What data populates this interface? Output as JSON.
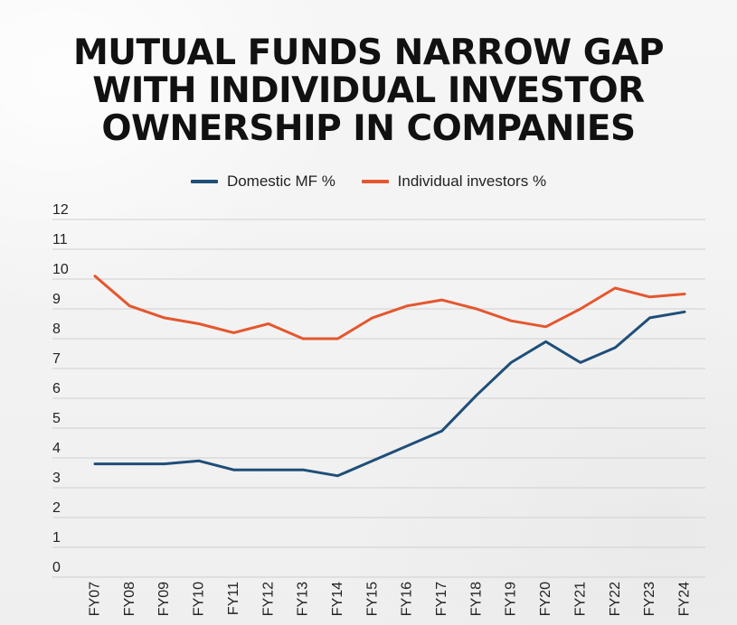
{
  "chart_data": {
    "type": "line",
    "title": "MUTUAL FUNDS NARROW GAP WITH INDIVIDUAL INVESTOR OWNERSHIP IN COMPANIES",
    "title_lines": [
      "MUTUAL FUNDS NARROW GAP",
      "WITH INDIVIDUAL INVESTOR",
      "OWNERSHIP IN COMPANIES"
    ],
    "xlabel": "",
    "ylabel": "",
    "x": [
      "FY07",
      "FY08",
      "FY09",
      "FY10",
      "FY11",
      "FY12",
      "FY13",
      "FY14",
      "FY15",
      "FY16",
      "FY17",
      "FY18",
      "FY19",
      "FY20",
      "FY21",
      "FY22",
      "FY23",
      "FY24"
    ],
    "yticks": [
      "0",
      "1",
      "2",
      "3",
      "4",
      "5",
      "6",
      "7",
      "8",
      "9",
      "10",
      "11",
      "12"
    ],
    "ylim": [
      0,
      12
    ],
    "grid": true,
    "legend_position": "top-center",
    "series": [
      {
        "name": "Domestic MF %",
        "color": "#1f4e79",
        "values": [
          3.8,
          3.8,
          3.8,
          3.9,
          3.6,
          3.6,
          3.6,
          3.4,
          3.9,
          4.4,
          4.9,
          6.1,
          7.2,
          7.9,
          7.2,
          7.7,
          8.7,
          8.9
        ]
      },
      {
        "name": "Individual investors %",
        "color": "#e4572e",
        "values": [
          10.1,
          9.1,
          8.7,
          8.5,
          8.2,
          8.5,
          8.0,
          8.0,
          8.7,
          9.1,
          9.3,
          9.0,
          8.6,
          8.4,
          9.0,
          9.7,
          9.4,
          9.5
        ]
      }
    ]
  }
}
